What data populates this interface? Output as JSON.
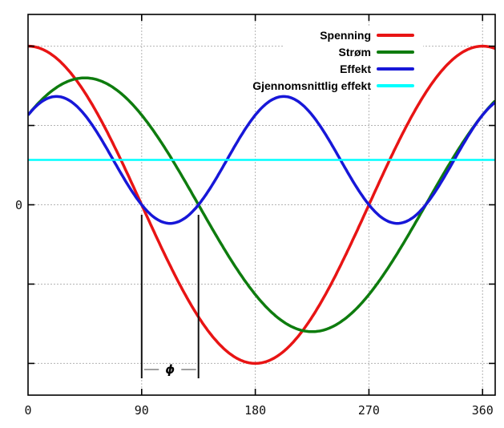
{
  "chart_data": {
    "type": "line",
    "title": "",
    "x_axis": {
      "unit": "degrees",
      "range": [
        0,
        370
      ],
      "ticks_deg": [
        0,
        90,
        180,
        270,
        360
      ],
      "tick_labels": [
        "0",
        "90",
        "180",
        "270",
        "360"
      ],
      "gridlines_deg": [
        90,
        180,
        270,
        360
      ]
    },
    "y_axis": {
      "range_divisions": [
        -2.4,
        2.4
      ],
      "gridline_divisions": [
        -2,
        -1,
        0,
        1,
        2
      ],
      "zero_label": "0"
    },
    "grid": true,
    "legend_position": "top-right-inside",
    "series": [
      {
        "name": "Spenning",
        "type": "cosine",
        "amplitude_div": 2.0,
        "phase_deg": 0,
        "color": "#e81414",
        "stroke_width": 3.5,
        "key_points": {
          "max_at_deg": [
            0,
            360
          ],
          "zero_at_deg": [
            90,
            270
          ],
          "min_at_deg": [
            180
          ]
        }
      },
      {
        "name": "Strøm",
        "type": "cosine",
        "amplitude_div": 1.6,
        "phase_deg": 45,
        "color": "#0e7c0e",
        "stroke_width": 3.5,
        "key_points": {
          "max_at_deg": [
            45
          ],
          "zero_at_deg": [
            135,
            315
          ],
          "min_at_deg": [
            225
          ]
        }
      },
      {
        "name": "Effekt",
        "type": "product_cosine",
        "amplitude_div": 1.6,
        "phase_deg": 45,
        "color": "#1717d8",
        "stroke_width": 3.5,
        "key_points": {
          "max_at_deg": [
            22.5,
            202.5
          ],
          "max_div": 1.366,
          "zero_at_deg": [
            90,
            135,
            270,
            315
          ],
          "min_at_deg": [
            112.5,
            292.5
          ],
          "min_div": -0.234
        }
      },
      {
        "name": "Gjennomsnittlig effekt",
        "type": "constant",
        "value_div": 0.5657,
        "color": "#00ffff",
        "stroke_width": 2.5
      }
    ],
    "annotation": {
      "label": "ϕ",
      "phase_difference_deg": 45,
      "from_deg": 90,
      "to_deg": 135,
      "bar_top_div": -0.126,
      "bar_bottom_div": -2.188,
      "label_y_div": -2.077
    },
    "colors": {
      "background": "#ffffff",
      "grid": "#b3b3b3",
      "axis": "#000000",
      "tick_label": "#111111",
      "annotation_line": "#8c8c8c"
    }
  }
}
